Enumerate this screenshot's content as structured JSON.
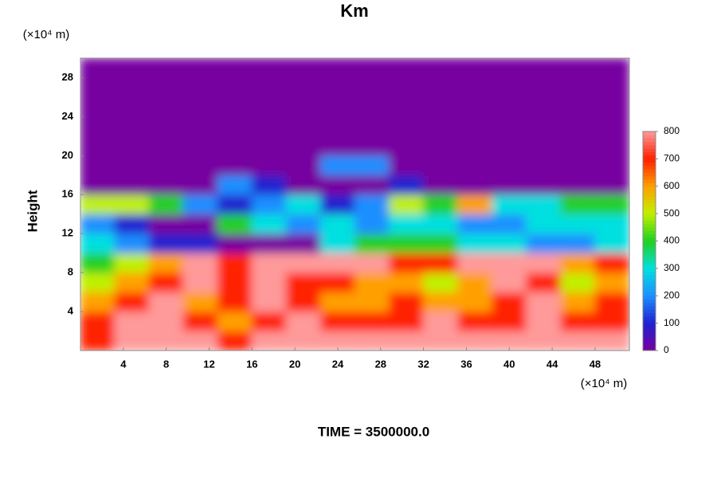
{
  "chart_data": {
    "type": "heatmap",
    "title": "Km",
    "ylabel": "Height",
    "y_unit": "(×10⁴ m)",
    "x_unit": "(×10⁴ m)",
    "footer": "TIME = 3500000.0",
    "xlim": [
      0,
      51.2
    ],
    "ylim": [
      0,
      30
    ],
    "xticks": [
      4,
      8,
      12,
      16,
      20,
      24,
      28,
      32,
      36,
      40,
      44,
      48
    ],
    "yticks": [
      4,
      8,
      12,
      16,
      20,
      24,
      28
    ],
    "colormap": [
      "#7700a0",
      "#2020d0",
      "#1f8fff",
      "#00e0e0",
      "#20d020",
      "#c0f000",
      "#ffa000",
      "#ff2000",
      "#ff9a9a"
    ],
    "colorbar": {
      "lim": [
        0,
        800
      ],
      "ticks": [
        0,
        100,
        200,
        300,
        400,
        500,
        600,
        700,
        800
      ]
    },
    "z": [
      [
        700,
        800,
        800,
        800,
        700,
        800,
        800,
        800,
        800,
        800,
        800,
        800,
        800,
        800,
        800,
        800
      ],
      [
        700,
        800,
        800,
        700,
        600,
        700,
        800,
        700,
        700,
        700,
        800,
        700,
        700,
        800,
        700,
        700
      ],
      [
        600,
        700,
        800,
        600,
        700,
        800,
        700,
        600,
        600,
        700,
        600,
        600,
        700,
        800,
        600,
        700
      ],
      [
        500,
        600,
        700,
        800,
        700,
        800,
        700,
        700,
        600,
        600,
        500,
        600,
        800,
        700,
        500,
        600
      ],
      [
        400,
        500,
        600,
        800,
        700,
        800,
        800,
        800,
        800,
        700,
        700,
        800,
        800,
        800,
        600,
        700
      ],
      [
        300,
        200,
        100,
        100,
        0,
        0,
        0,
        300,
        400,
        400,
        400,
        300,
        300,
        200,
        200,
        300
      ],
      [
        200,
        100,
        0,
        0,
        400,
        300,
        200,
        300,
        200,
        300,
        300,
        200,
        200,
        300,
        300,
        300
      ],
      [
        500,
        500,
        400,
        200,
        100,
        200,
        300,
        100,
        200,
        500,
        400,
        600,
        300,
        300,
        400,
        400
      ],
      [
        0,
        0,
        0,
        0,
        200,
        100,
        0,
        0,
        0,
        100,
        0,
        0,
        0,
        0,
        0,
        0
      ],
      [
        0,
        0,
        0,
        0,
        0,
        0,
        0,
        200,
        200,
        0,
        0,
        0,
        0,
        0,
        0,
        0
      ],
      [
        0,
        0,
        0,
        0,
        0,
        0,
        0,
        0,
        0,
        0,
        0,
        0,
        0,
        0,
        0,
        0
      ],
      [
        0,
        0,
        0,
        0,
        0,
        0,
        0,
        0,
        0,
        0,
        0,
        0,
        0,
        0,
        0,
        0
      ],
      [
        0,
        0,
        0,
        0,
        0,
        0,
        0,
        0,
        0,
        0,
        0,
        0,
        0,
        0,
        0,
        0
      ],
      [
        0,
        0,
        0,
        0,
        0,
        0,
        0,
        0,
        0,
        0,
        0,
        0,
        0,
        0,
        0,
        0
      ],
      [
        0,
        0,
        0,
        0,
        0,
        0,
        0,
        0,
        0,
        0,
        0,
        0,
        0,
        0,
        0,
        0
      ]
    ]
  }
}
